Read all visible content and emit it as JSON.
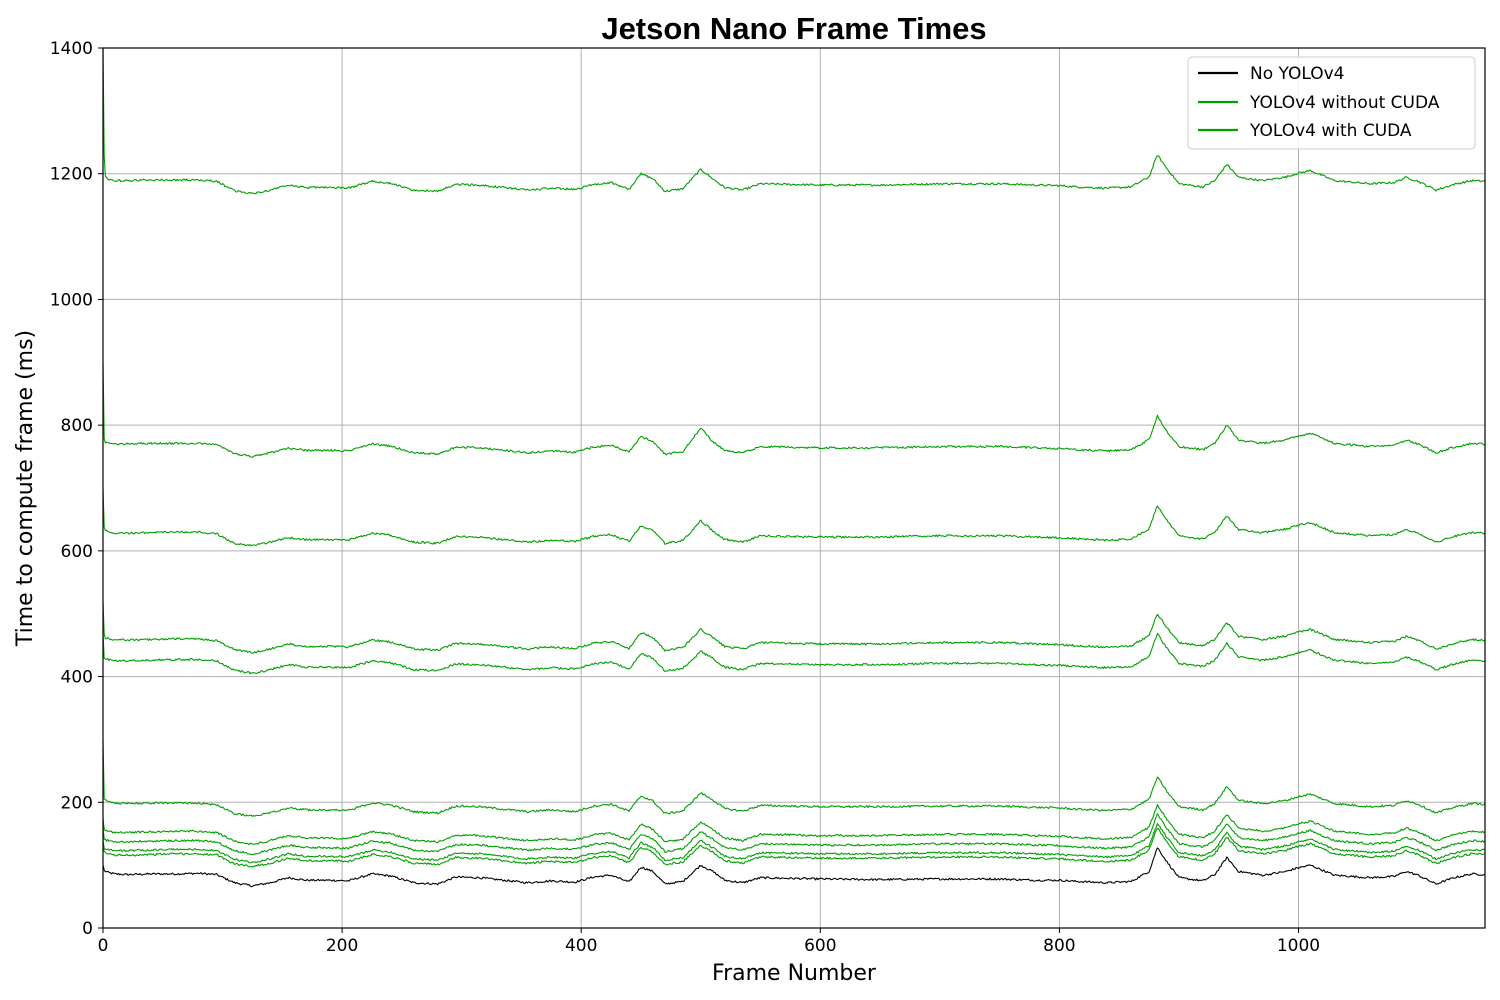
{
  "chart_data": {
    "type": "line",
    "title": "Jetson Nano Frame Times",
    "xlabel": "Frame Number",
    "ylabel": "Time to compute frame (ms)",
    "xlim": [
      0,
      1156
    ],
    "ylim": [
      0,
      1400
    ],
    "xticks": [
      0,
      200,
      400,
      600,
      800,
      1000
    ],
    "yticks": [
      0,
      200,
      400,
      600,
      800,
      1000,
      1200,
      1400
    ],
    "grid": true,
    "legend_position": "top-right",
    "legend": [
      {
        "label": "No YOLOv4",
        "color": "#000000"
      },
      {
        "label": "YOLOv4 without CUDA",
        "color": "#00a000"
      },
      {
        "label": "YOLOv4 with CUDA",
        "color": "#00a000"
      }
    ],
    "x": [
      0,
      2,
      5,
      10,
      20,
      40,
      60,
      80,
      95,
      110,
      125,
      140,
      155,
      170,
      190,
      205,
      225,
      240,
      260,
      280,
      295,
      315,
      335,
      355,
      375,
      395,
      410,
      425,
      440,
      450,
      460,
      470,
      485,
      500,
      510,
      520,
      535,
      550,
      600,
      650,
      700,
      750,
      780,
      800,
      815,
      840,
      860,
      875,
      882,
      890,
      900,
      920,
      930,
      940,
      950,
      970,
      990,
      998,
      1010,
      1030,
      1060,
      1080,
      1090,
      1100,
      1115,
      1130,
      1145,
      1156
    ],
    "series": [
      {
        "name": "No YOLOv4",
        "color": "#000000",
        "initial_spike": 100,
        "values": [
          93,
          90,
          88,
          86,
          85,
          86,
          86,
          87,
          85,
          72,
          67,
          72,
          80,
          76,
          76,
          75,
          86,
          83,
          72,
          70,
          81,
          80,
          76,
          72,
          75,
          73,
          81,
          84,
          73,
          97,
          90,
          70,
          74,
          100,
          90,
          76,
          72,
          80,
          78,
          77,
          78,
          78,
          76,
          76,
          74,
          72,
          74,
          90,
          128,
          105,
          80,
          75,
          85,
          112,
          90,
          84,
          90,
          95,
          100,
          84,
          80,
          82,
          90,
          84,
          70,
          80,
          86,
          85
        ]
      },
      {
        "name": "YOLOv4 with CUDA",
        "color": "#00a000",
        "initial_spike": 135,
        "values": [
          122,
          119,
          118,
          116,
          116,
          117,
          118,
          118,
          116,
          102,
          98,
          103,
          111,
          107,
          107,
          106,
          117,
          114,
          103,
          101,
          112,
          111,
          107,
          103,
          106,
          104,
          112,
          115,
          104,
          128,
          121,
          101,
          105,
          131,
          121,
          107,
          103,
          113,
          111,
          111,
          113,
          113,
          111,
          110,
          108,
          106,
          108,
          124,
          160,
          137,
          113,
          108,
          118,
          145,
          123,
          118,
          124,
          129,
          134,
          118,
          113,
          115,
          123,
          117,
          103,
          112,
          118,
          117
        ]
      },
      {
        "name": "YOLOv4 with CUDA",
        "color": "#00a000",
        "initial_spike": 140,
        "values": [
          128,
          126,
          125,
          123,
          123,
          124,
          125,
          125,
          123,
          109,
          104,
          110,
          118,
          114,
          114,
          113,
          124,
          121,
          110,
          108,
          119,
          118,
          114,
          110,
          113,
          111,
          119,
          122,
          111,
          136,
          128,
          108,
          112,
          139,
          128,
          114,
          110,
          120,
          118,
          118,
          120,
          120,
          118,
          117,
          115,
          113,
          115,
          131,
          167,
          144,
          120,
          115,
          125,
          152,
          130,
          125,
          131,
          136,
          141,
          125,
          120,
          122,
          130,
          124,
          110,
          119,
          125,
          124
        ]
      },
      {
        "name": "YOLOv4 with CUDA",
        "color": "#00a000",
        "initial_spike": 160,
        "values": [
          142,
          140,
          139,
          137,
          137,
          138,
          139,
          139,
          137,
          123,
          118,
          124,
          132,
          128,
          128,
          127,
          138,
          135,
          124,
          122,
          133,
          132,
          128,
          124,
          127,
          125,
          133,
          136,
          125,
          150,
          142,
          122,
          126,
          153,
          142,
          128,
          124,
          134,
          132,
          132,
          134,
          134,
          132,
          131,
          129,
          127,
          129,
          145,
          181,
          158,
          134,
          129,
          139,
          166,
          144,
          139,
          145,
          150,
          155,
          139,
          134,
          136,
          144,
          138,
          124,
          133,
          139,
          138
        ]
      },
      {
        "name": "YOLOv4 with CUDA",
        "color": "#00a000",
        "initial_spike": 175,
        "values": [
          157,
          155,
          154,
          152,
          152,
          153,
          154,
          154,
          152,
          138,
          133,
          139,
          147,
          143,
          143,
          142,
          153,
          150,
          139,
          137,
          148,
          147,
          143,
          139,
          142,
          140,
          148,
          151,
          140,
          165,
          157,
          137,
          141,
          168,
          157,
          143,
          139,
          149,
          147,
          147,
          149,
          149,
          147,
          146,
          144,
          142,
          144,
          160,
          196,
          173,
          149,
          144,
          154,
          181,
          159,
          154,
          160,
          165,
          170,
          154,
          149,
          151,
          159,
          153,
          139,
          148,
          154,
          153
        ]
      },
      {
        "name": "YOLOv4 with CUDA",
        "color": "#00a000",
        "initial_spike": 300,
        "values": [
          210,
          203,
          201,
          199,
          198,
          199,
          199,
          199,
          196,
          182,
          178,
          184,
          191,
          188,
          188,
          187,
          199,
          196,
          185,
          183,
          194,
          193,
          189,
          185,
          188,
          185,
          194,
          197,
          186,
          210,
          202,
          182,
          186,
          215,
          204,
          190,
          186,
          195,
          193,
          193,
          194,
          194,
          192,
          191,
          189,
          187,
          189,
          205,
          240,
          217,
          193,
          188,
          198,
          225,
          203,
          198,
          203,
          208,
          213,
          198,
          193,
          195,
          203,
          197,
          183,
          192,
          198,
          197
        ]
      },
      {
        "name": "YOLOv4 without CUDA",
        "color": "#00a000",
        "initial_spike": 470,
        "values": [
          430,
          428,
          427,
          425,
          425,
          426,
          427,
          427,
          425,
          410,
          405,
          411,
          419,
          415,
          415,
          414,
          425,
          422,
          411,
          409,
          420,
          419,
          415,
          411,
          414,
          412,
          420,
          423,
          412,
          437,
          429,
          409,
          413,
          440,
          429,
          415,
          411,
          421,
          419,
          419,
          421,
          421,
          419,
          418,
          416,
          414,
          416,
          432,
          468,
          445,
          421,
          416,
          426,
          453,
          431,
          426,
          432,
          437,
          442,
          426,
          421,
          423,
          431,
          425,
          411,
          420,
          426,
          425
        ]
      },
      {
        "name": "YOLOv4 without CUDA",
        "color": "#00a000",
        "initial_spike": 520,
        "values": [
          472,
          462,
          460,
          459,
          458,
          459,
          460,
          460,
          457,
          443,
          438,
          444,
          452,
          448,
          448,
          447,
          458,
          455,
          444,
          442,
          453,
          452,
          448,
          444,
          447,
          445,
          453,
          456,
          445,
          470,
          462,
          442,
          446,
          475,
          462,
          448,
          444,
          454,
          452,
          452,
          454,
          454,
          452,
          451,
          449,
          447,
          449,
          465,
          500,
          478,
          454,
          449,
          459,
          486,
          464,
          459,
          465,
          470,
          475,
          459,
          454,
          456,
          464,
          458,
          444,
          453,
          459,
          458
        ]
      },
      {
        "name": "YOLOv4 without CUDA",
        "color": "#00a000",
        "initial_spike": 700,
        "values": [
          640,
          632,
          630,
          628,
          628,
          629,
          630,
          630,
          627,
          612,
          608,
          614,
          621,
          618,
          618,
          617,
          628,
          625,
          614,
          612,
          623,
          622,
          618,
          614,
          617,
          615,
          623,
          626,
          615,
          640,
          632,
          612,
          616,
          648,
          632,
          618,
          614,
          624,
          622,
          622,
          624,
          624,
          622,
          621,
          619,
          617,
          619,
          635,
          672,
          648,
          624,
          619,
          629,
          656,
          634,
          629,
          635,
          640,
          645,
          629,
          624,
          626,
          634,
          628,
          614,
          623,
          629,
          628
        ]
      },
      {
        "name": "YOLOv4 without CUDA",
        "color": "#00a000",
        "initial_spike": 900,
        "values": [
          785,
          773,
          771,
          770,
          770,
          771,
          771,
          771,
          769,
          755,
          750,
          756,
          763,
          760,
          760,
          759,
          770,
          767,
          756,
          754,
          765,
          764,
          760,
          756,
          759,
          757,
          765,
          768,
          757,
          782,
          774,
          754,
          758,
          795,
          774,
          760,
          756,
          766,
          764,
          764,
          766,
          766,
          764,
          763,
          761,
          759,
          761,
          777,
          815,
          790,
          766,
          761,
          771,
          800,
          776,
          771,
          777,
          782,
          787,
          771,
          766,
          768,
          776,
          770,
          756,
          765,
          771,
          770
        ]
      },
      {
        "name": "YOLOv4 without CUDA",
        "color": "#00a000",
        "initial_spike": 1400,
        "values": [
          1260,
          1195,
          1191,
          1189,
          1189,
          1190,
          1190,
          1190,
          1188,
          1173,
          1168,
          1174,
          1182,
          1178,
          1178,
          1177,
          1188,
          1185,
          1174,
          1172,
          1183,
          1182,
          1178,
          1174,
          1177,
          1175,
          1183,
          1186,
          1175,
          1200,
          1192,
          1172,
          1176,
          1207,
          1192,
          1178,
          1174,
          1184,
          1182,
          1182,
          1184,
          1184,
          1182,
          1181,
          1179,
          1177,
          1179,
          1195,
          1230,
          1208,
          1184,
          1179,
          1189,
          1215,
          1194,
          1189,
          1195,
          1200,
          1205,
          1189,
          1184,
          1186,
          1194,
          1188,
          1174,
          1183,
          1189,
          1188
        ]
      }
    ]
  }
}
